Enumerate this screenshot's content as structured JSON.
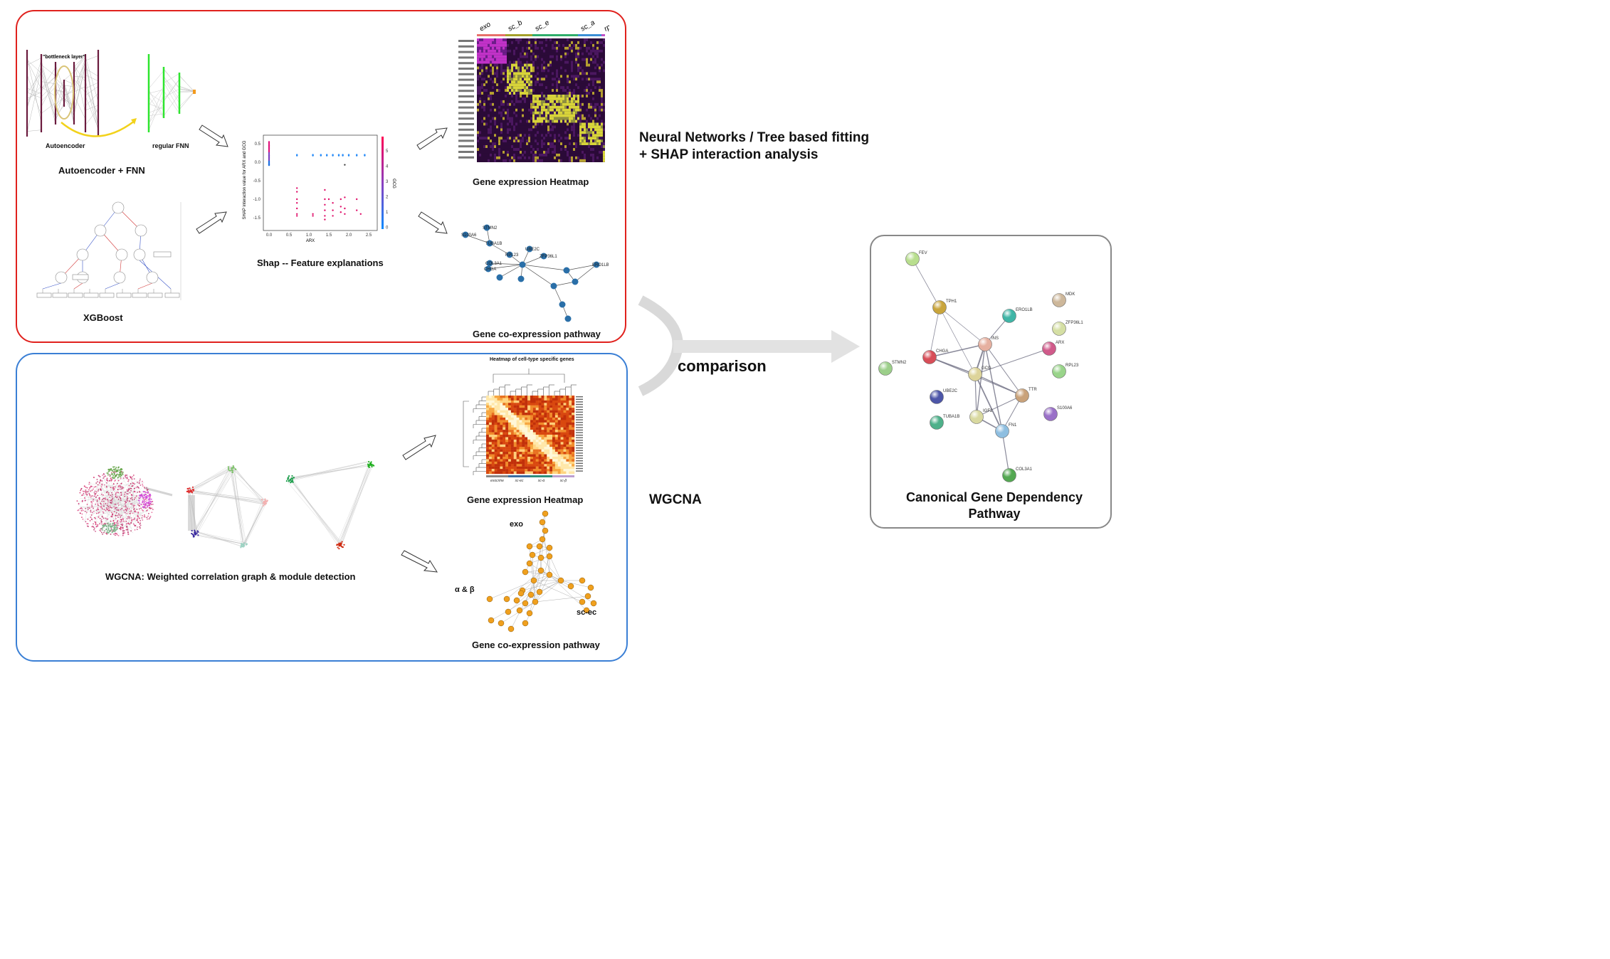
{
  "top_panel": {
    "border_color": "#e0211d",
    "autoencoder_fnn": {
      "title": "Autoencoder + FNN",
      "bottleneck_label": "\"bottleneck layer\"",
      "autoencoder_label": "Autoencoder",
      "fnn_label": "regular FNN"
    },
    "xgboost": {
      "title": "XGBoost"
    },
    "shap": {
      "title": "Shap -- Feature explanations",
      "ylabel": "SHAP interaction value for\nARX and GCG",
      "xlabel": "ARX",
      "colorbar_label": "GCG",
      "yticks": [
        "0.5",
        "0.0",
        "-0.5",
        "-1.0",
        "-1.5"
      ],
      "xticks": [
        "0.0",
        "0.5",
        "1.0",
        "1.5",
        "2.0",
        "2.5"
      ],
      "cticks": [
        "5",
        "4",
        "3",
        "2",
        "1",
        "0"
      ]
    },
    "heatmap": {
      "title": "Gene expression Heatmap",
      "groups": [
        "exo",
        "sc_b",
        "sc_e",
        "sc_a",
        "rp"
      ],
      "group_colors": [
        "#e8706a",
        "#a5a02a",
        "#2fae6b",
        "#3b8fd6",
        "#c04fc5"
      ]
    },
    "pathway": {
      "title": "Gene co-expression pathway",
      "nodes": [
        "STMN2",
        "S100A6",
        "TUBA1B",
        "UBE2C",
        "ZFP36L1",
        "RPL23",
        "COL3A1",
        "CHGA",
        "ERO1LB"
      ]
    }
  },
  "header_text": {
    "line1": "Neural Networks / Tree based fitting",
    "line2": "+ SHAP interaction analysis"
  },
  "bottom_panel": {
    "border_color": "#3a7fd5",
    "graph": {
      "title": "WGCNA: Weighted correlation graph & module detection"
    },
    "heatmap": {
      "title": "Gene expression Heatmap",
      "subtitle": "Heatmap of cell-type specific genes",
      "xlabels": [
        "exocrine",
        "sc-ec",
        "sc-α",
        "sc-β"
      ]
    },
    "pathway": {
      "title": "Gene co-expression pathway",
      "group_exo": "exo",
      "group_ab": "α & β",
      "group_scec": "sc-ec"
    }
  },
  "wgcna_label": "WGCNA",
  "comparison_label": "comparison",
  "canonical": {
    "title_line1": "Canonical Gene Dependency",
    "title_line2": "Pathway",
    "border_color": "#888888",
    "nodes": [
      "FEV",
      "TPH1",
      "ERO1LB",
      "MDK",
      "ZFP36L1",
      "ARX",
      "INS",
      "CHGA",
      "STMN2",
      "GCG",
      "RPL23",
      "TTR",
      "UBE2C",
      "IGF2",
      "S100A6",
      "TUBA1B",
      "FN1",
      "COL3A1"
    ]
  }
}
